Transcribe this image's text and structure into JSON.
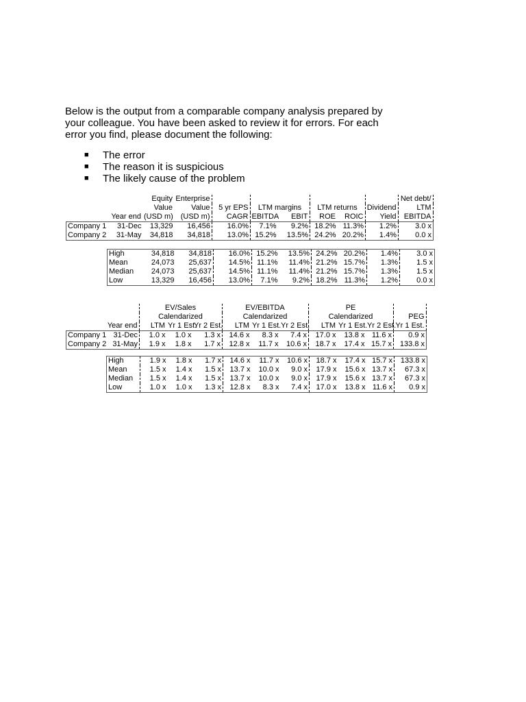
{
  "intro": "Below is the output from a comparable company analysis prepared by your colleague. You have been asked to review it for errors. For each error you find, please document the following:",
  "bullets": [
    "The error",
    "The reason it is suspicious",
    "The likely cause of the problem"
  ],
  "table1": {
    "header": [
      [
        "",
        "",
        "Equity",
        "Enterprise",
        "",
        "",
        "",
        "",
        "",
        "",
        "Net debt/"
      ],
      [
        "",
        "",
        "Value",
        "Value",
        "5 yr EPS",
        "LTM margins",
        "",
        "LTM returns",
        "",
        "Dividend",
        "LTM"
      ],
      [
        "",
        "Year end",
        "(USD m)",
        "(USD m)",
        "CAGR",
        "EBITDA",
        "EBIT",
        "ROE",
        "ROIC",
        "Yield",
        "EBITDA"
      ]
    ],
    "companies": [
      [
        "Company 1",
        "31-Dec",
        "13,329",
        "16,456",
        "16.0%",
        "7.1%",
        "9.2%",
        "18.2%",
        "11.3%",
        "1.2%",
        "3.0 x"
      ],
      [
        "Company 2",
        "31-May",
        "34,818",
        "34,818",
        "13.0%",
        "15.2%",
        "13.5%",
        "24.2%",
        "20.2%",
        "1.4%",
        "0.0 x"
      ]
    ],
    "stats": [
      [
        "High",
        "34,818",
        "34,818",
        "16.0%",
        "15.2%",
        "13.5%",
        "24.2%",
        "20.2%",
        "1.4%",
        "3.0 x"
      ],
      [
        "Mean",
        "24,073",
        "25,637",
        "14.5%",
        "11.1%",
        "11.4%",
        "21.2%",
        "15.7%",
        "1.3%",
        "1.5 x"
      ],
      [
        "Median",
        "24,073",
        "25,637",
        "14.5%",
        "11.1%",
        "11.4%",
        "21.2%",
        "15.7%",
        "1.3%",
        "1.5 x"
      ],
      [
        "Low",
        "13,329",
        "16,456",
        "13.0%",
        "7.1%",
        "9.2%",
        "18.2%",
        "11.3%",
        "1.2%",
        "0.0 x"
      ]
    ]
  },
  "table2": {
    "header": [
      [
        "",
        "",
        "",
        "EV/Sales",
        "",
        "",
        "EV/EBITDA",
        "",
        "",
        "PE",
        "",
        ""
      ],
      [
        "",
        "",
        "",
        "Calendarized",
        "",
        "",
        "Calendarized",
        "",
        "",
        "Calendarized",
        "",
        "PEG"
      ],
      [
        "",
        "Year end",
        "LTM",
        "Yr 1 Est.",
        "Yr 2 Est.",
        "LTM",
        "Yr 1 Est.",
        "Yr 2 Est.",
        "LTM",
        "Yr 1 Est.",
        "Yr 2 Est.",
        "Yr 1 Est."
      ]
    ],
    "companies": [
      [
        "Company 1",
        "31-Dec",
        "1.0 x",
        "1.0 x",
        "1.3 x",
        "14.6 x",
        "8.3 x",
        "7.4 x",
        "17.0 x",
        "13.8 x",
        "11.6 x",
        "0.9 x"
      ],
      [
        "Company 2",
        "31-May",
        "1.9 x",
        "1.8 x",
        "1.7 x",
        "12.8 x",
        "11.7 x",
        "10.6 x",
        "18.7 x",
        "17.4 x",
        "15.7 x",
        "133.8 x"
      ]
    ],
    "stats": [
      [
        "High",
        "1.9 x",
        "1.8 x",
        "1.7 x",
        "14.6 x",
        "11.7 x",
        "10.6 x",
        "18.7 x",
        "17.4 x",
        "15.7 x",
        "133.8 x"
      ],
      [
        "Mean",
        "1.5 x",
        "1.4 x",
        "1.5 x",
        "13.7 x",
        "10.0 x",
        "9.0 x",
        "17.9 x",
        "15.6 x",
        "13.7 x",
        "67.3 x"
      ],
      [
        "Median",
        "1.5 x",
        "1.4 x",
        "1.5 x",
        "13.7 x",
        "10.0 x",
        "9.0 x",
        "17.9 x",
        "15.6 x",
        "13.7 x",
        "67.3 x"
      ],
      [
        "Low",
        "1.0 x",
        "1.0 x",
        "1.3 x",
        "12.8 x",
        "8.3 x",
        "7.4 x",
        "17.0 x",
        "13.8 x",
        "11.6 x",
        "0.9 x"
      ]
    ]
  }
}
